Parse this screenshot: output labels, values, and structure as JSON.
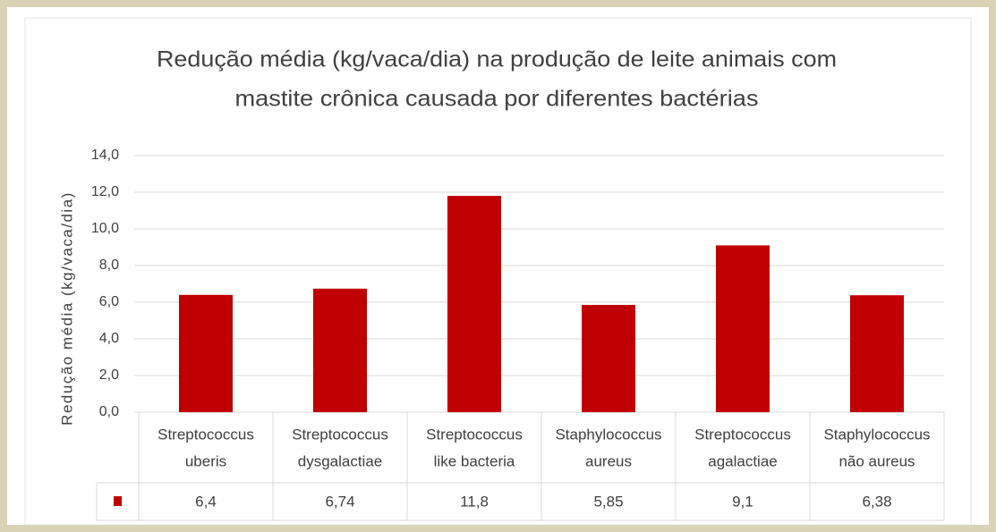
{
  "chart_data": {
    "type": "bar",
    "title": [
      "Redução média (kg/vaca/dia) na produção de leite animais com",
      "mastite crônica causada por diferentes bactérias"
    ],
    "ylabel": "Redução média (kg/vaca/dia)",
    "categories": [
      [
        "Streptococcus",
        "uberis"
      ],
      [
        "Streptococcus",
        "dysgalactiae"
      ],
      [
        "Streptococcus",
        "like bacteria"
      ],
      [
        "Staphylococcus",
        "aureus"
      ],
      [
        "Streptococcus",
        "agalactiae"
      ],
      [
        "Staphylococcus",
        "não aureus"
      ]
    ],
    "values": [
      6.4,
      6.74,
      11.8,
      5.85,
      9.1,
      6.38
    ],
    "value_labels": [
      "6,4",
      "6,74",
      "11,8",
      "5,85",
      "9,1",
      "6,38"
    ],
    "color": "#c00000",
    "ylim": [
      0,
      14
    ],
    "yticks": [
      {
        "value": 0,
        "label": "0,0"
      },
      {
        "value": 2,
        "label": "2,0"
      },
      {
        "value": 4,
        "label": "4,0"
      },
      {
        "value": 6,
        "label": "6,0"
      },
      {
        "value": 8,
        "label": "8,0"
      },
      {
        "value": 10,
        "label": "10,0"
      },
      {
        "value": 12,
        "label": "12,0"
      },
      {
        "value": 14,
        "label": "14,0"
      }
    ],
    "grid": true
  }
}
